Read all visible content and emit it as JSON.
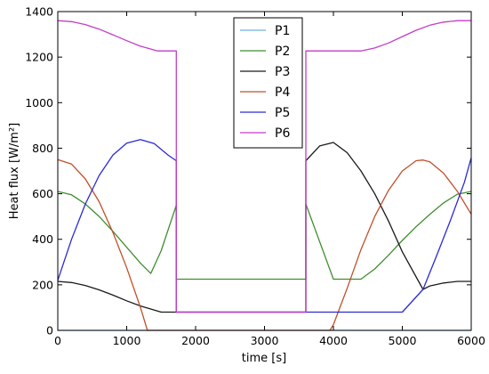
{
  "chart_data": {
    "type": "line",
    "title": "",
    "xlabel": "time [s]",
    "ylabel": "Heat flux [W/m²]",
    "xlim": [
      0,
      6000
    ],
    "ylim": [
      0,
      1400
    ],
    "xticks": [
      0,
      1000,
      2000,
      3000,
      4000,
      5000,
      6000
    ],
    "yticks": [
      0,
      200,
      400,
      600,
      800,
      1000,
      1200,
      1400
    ],
    "grid": false,
    "legend_position": "top-center",
    "series": [
      {
        "name": "P1",
        "color": "#6fb1d9",
        "x": [
          0,
          6000
        ],
        "y": [
          0,
          0
        ]
      },
      {
        "name": "P2",
        "color": "#3e8e2e",
        "x": [
          0,
          200,
          400,
          600,
          800,
          1000,
          1200,
          1350,
          1500,
          1720,
          1720,
          3600,
          3600,
          3800,
          4000,
          4400,
          4600,
          4800,
          5000,
          5200,
          5400,
          5600,
          5800,
          6000
        ],
        "y": [
          610,
          595,
          555,
          500,
          435,
          365,
          295,
          250,
          350,
          550,
          225,
          225,
          555,
          390,
          225,
          225,
          270,
          330,
          395,
          455,
          510,
          560,
          598,
          610
        ]
      },
      {
        "name": "P3",
        "color": "#1a1a1a",
        "x": [
          0,
          200,
          400,
          600,
          800,
          1000,
          1200,
          1500,
          1720,
          1720,
          3600,
          3600,
          3800,
          4000,
          4200,
          4400,
          4600,
          4800,
          5000,
          5300,
          5400,
          5600,
          5800,
          6000
        ],
        "y": [
          215,
          210,
          197,
          178,
          155,
          130,
          107,
          80,
          80,
          80,
          80,
          745,
          810,
          825,
          780,
          700,
          600,
          480,
          345,
          180,
          195,
          208,
          215,
          215
        ]
      },
      {
        "name": "P4",
        "color": "#c0502a",
        "x": [
          0,
          200,
          400,
          600,
          800,
          1000,
          1200,
          1300,
          1400,
          1720,
          3600,
          3950,
          4000,
          4200,
          4400,
          4600,
          4800,
          5000,
          5200,
          5300,
          5400,
          5600,
          5800,
          6000
        ],
        "y": [
          750,
          730,
          665,
          565,
          430,
          275,
          100,
          0,
          0,
          0,
          0,
          0,
          25,
          185,
          355,
          500,
          615,
          700,
          745,
          748,
          740,
          690,
          610,
          510
        ]
      },
      {
        "name": "P5",
        "color": "#2a2ad6",
        "x": [
          0,
          200,
          400,
          600,
          800,
          1000,
          1200,
          1400,
          1600,
          1720,
          1720,
          3600,
          4000,
          4500,
          5000,
          5300,
          5500,
          5700,
          5900,
          6000
        ],
        "y": [
          220,
          400,
          555,
          680,
          770,
          822,
          838,
          820,
          770,
          745,
          80,
          80,
          80,
          80,
          80,
          180,
          330,
          485,
          650,
          758
        ]
      },
      {
        "name": "P6",
        "color": "#c23cc8",
        "x": [
          0,
          200,
          400,
          600,
          800,
          1000,
          1200,
          1450,
          1720,
          1720,
          3600,
          3600,
          4400,
          4600,
          4800,
          5000,
          5200,
          5400,
          5600,
          5800,
          6000
        ],
        "y": [
          1360,
          1356,
          1343,
          1323,
          1298,
          1272,
          1248,
          1227,
          1227,
          80,
          80,
          1227,
          1227,
          1240,
          1262,
          1290,
          1318,
          1340,
          1354,
          1360,
          1360
        ]
      }
    ]
  }
}
